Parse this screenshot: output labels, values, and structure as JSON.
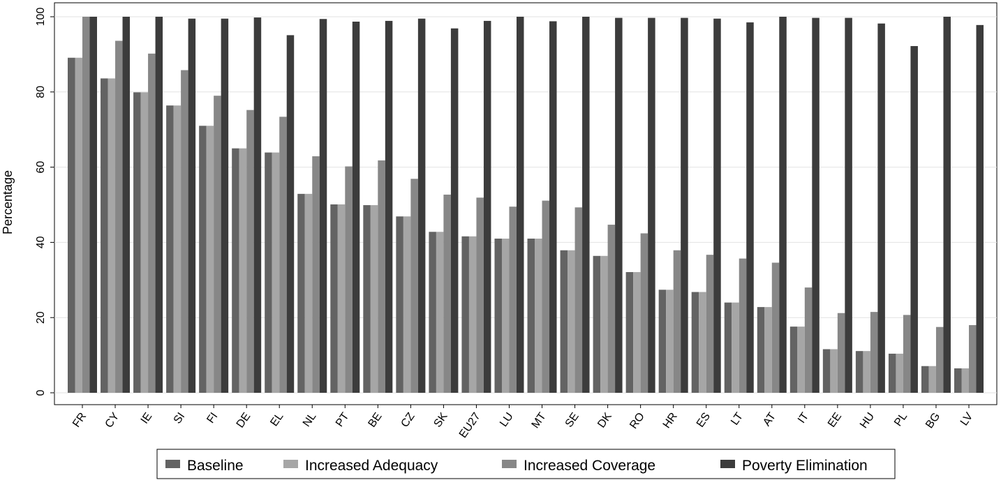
{
  "chart_data": {
    "type": "bar",
    "title": "",
    "xlabel": "",
    "ylabel": "Percentage",
    "ylim": [
      0,
      100
    ],
    "yticks": [
      0,
      20,
      40,
      60,
      80,
      100
    ],
    "grid": "horizontal",
    "legend_position": "bottom",
    "categories": [
      "FR",
      "CY",
      "IE",
      "SI",
      "FI",
      "DE",
      "EL",
      "NL",
      "PT",
      "BE",
      "CZ",
      "SK",
      "EU27",
      "LU",
      "MT",
      "SE",
      "DK",
      "RO",
      "HR",
      "ES",
      "LT",
      "AT",
      "IT",
      "EE",
      "HU",
      "PL",
      "BG",
      "LV"
    ],
    "series": [
      {
        "name": "Baseline",
        "color": "#636363",
        "values": [
          89.1,
          83.6,
          79.9,
          76.4,
          71.0,
          65.0,
          63.9,
          52.9,
          50.1,
          49.9,
          46.9,
          42.8,
          41.6,
          41.0,
          41.0,
          37.9,
          36.4,
          32.1,
          27.4,
          26.8,
          24.0,
          22.8,
          17.6,
          11.6,
          11.1,
          10.4,
          7.1,
          6.5
        ]
      },
      {
        "name": "Increased Adequacy",
        "color": "#a6a6a6",
        "values": [
          89.1,
          83.6,
          79.9,
          76.4,
          71.0,
          65.0,
          63.9,
          52.9,
          50.1,
          49.9,
          46.9,
          42.8,
          41.6,
          41.0,
          41.0,
          37.9,
          36.4,
          32.1,
          27.4,
          26.8,
          24.0,
          22.8,
          17.6,
          11.6,
          11.1,
          10.4,
          7.1,
          6.5
        ]
      },
      {
        "name": "Increased Coverage",
        "color": "#878787",
        "values": [
          100.0,
          93.6,
          90.2,
          85.8,
          79.0,
          75.2,
          73.4,
          62.9,
          60.2,
          61.8,
          56.9,
          52.7,
          51.9,
          49.5,
          51.1,
          49.3,
          44.7,
          42.4,
          37.9,
          36.7,
          35.7,
          34.6,
          28.0,
          21.2,
          21.5,
          20.7,
          17.5,
          18.0
        ]
      },
      {
        "name": "Poverty Elimination",
        "color": "#3c3c3c",
        "values": [
          100.0,
          100.0,
          100.0,
          99.5,
          99.5,
          99.8,
          95.1,
          99.4,
          98.7,
          98.9,
          99.5,
          96.9,
          98.9,
          100.0,
          98.8,
          100.0,
          99.7,
          99.7,
          99.7,
          99.5,
          98.5,
          100.0,
          99.7,
          99.7,
          98.2,
          92.2,
          100.0,
          97.8
        ]
      }
    ]
  }
}
